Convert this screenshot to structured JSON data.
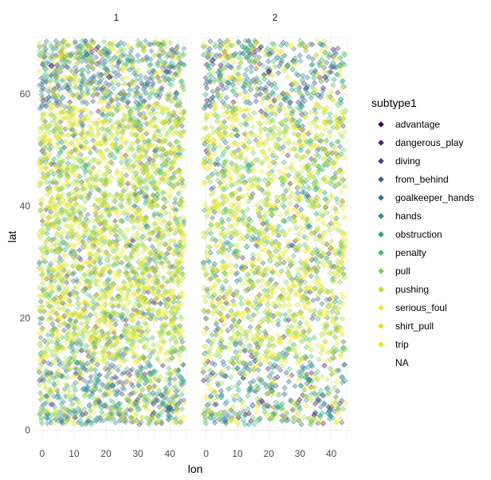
{
  "chart_data": {
    "type": "scatter",
    "xlabel": "lon",
    "ylabel": "lat",
    "xlim": [
      -2.2,
      46.2
    ],
    "ylim": [
      -1.5,
      70.5
    ],
    "x_ticks": [
      0,
      10,
      20,
      30,
      40
    ],
    "y_ticks": [
      0,
      20,
      40,
      60
    ],
    "grid": true,
    "point_shape": "diamond",
    "point_alpha": 0.45,
    "facets": [
      "1",
      "2"
    ],
    "legend": {
      "title": "subtype1",
      "placement": "right",
      "entries": [
        {
          "name": "advantage",
          "color": "#440154"
        },
        {
          "name": "dangerous_play",
          "color": "#482576"
        },
        {
          "name": "diving",
          "color": "#414487"
        },
        {
          "name": "from_behind",
          "color": "#35608D"
        },
        {
          "name": "goalkeeper_hands",
          "color": "#2A788E"
        },
        {
          "name": "hands",
          "color": "#21908C"
        },
        {
          "name": "obstruction",
          "color": "#22A884"
        },
        {
          "name": "penalty",
          "color": "#43BF71"
        },
        {
          "name": "pull",
          "color": "#7AD151"
        },
        {
          "name": "pushing",
          "color": "#BBDF27"
        },
        {
          "name": "serious_foul",
          "color": "#FDE725"
        },
        {
          "name": "shirt_pull",
          "color": "#DCE319"
        },
        {
          "name": "trip",
          "color": "#F2E51D"
        },
        {
          "name": "NA",
          "color": "#7F7F7F"
        }
      ]
    },
    "series": [
      {
        "facet": "1",
        "x": [
          3,
          8,
          14,
          21,
          27,
          33,
          39,
          42,
          5,
          12,
          19,
          25,
          31,
          37,
          41,
          2,
          9,
          16,
          23,
          30,
          36,
          43,
          6,
          18,
          28,
          38,
          11,
          22,
          34,
          40
        ],
        "y": [
          65,
          61,
          67,
          63,
          66,
          62,
          64,
          60,
          52,
          48,
          55,
          44,
          50,
          46,
          53,
          38,
          41,
          35,
          39,
          33,
          42,
          36,
          27,
          22,
          29,
          24,
          12,
          8,
          10,
          4
        ],
        "subtype": [
          0,
          3,
          5,
          1,
          6,
          4,
          2,
          5,
          10,
          8,
          12,
          9,
          11,
          7,
          10,
          12,
          8,
          9,
          10,
          11,
          7,
          12,
          9,
          10,
          8,
          11,
          5,
          4,
          6,
          3
        ]
      },
      {
        "facet": "2",
        "x": [
          2,
          7,
          13,
          20,
          26,
          32,
          38,
          43,
          4,
          11,
          18,
          24,
          30,
          36,
          42,
          1,
          8,
          15,
          22,
          29,
          35,
          41,
          6,
          17,
          27,
          37,
          10,
          21,
          33,
          39
        ],
        "y": [
          66,
          62,
          68,
          64,
          65,
          61,
          63,
          59,
          53,
          49,
          56,
          45,
          51,
          47,
          54,
          39,
          42,
          36,
          40,
          34,
          43,
          37,
          28,
          23,
          30,
          25,
          11,
          7,
          9,
          3
        ],
        "subtype": [
          1,
          4,
          6,
          0,
          5,
          3,
          2,
          6,
          11,
          9,
          10,
          8,
          12,
          7,
          11,
          10,
          9,
          8,
          12,
          11,
          7,
          10,
          8,
          12,
          9,
          11,
          4,
          5,
          3,
          6
        ]
      }
    ]
  }
}
